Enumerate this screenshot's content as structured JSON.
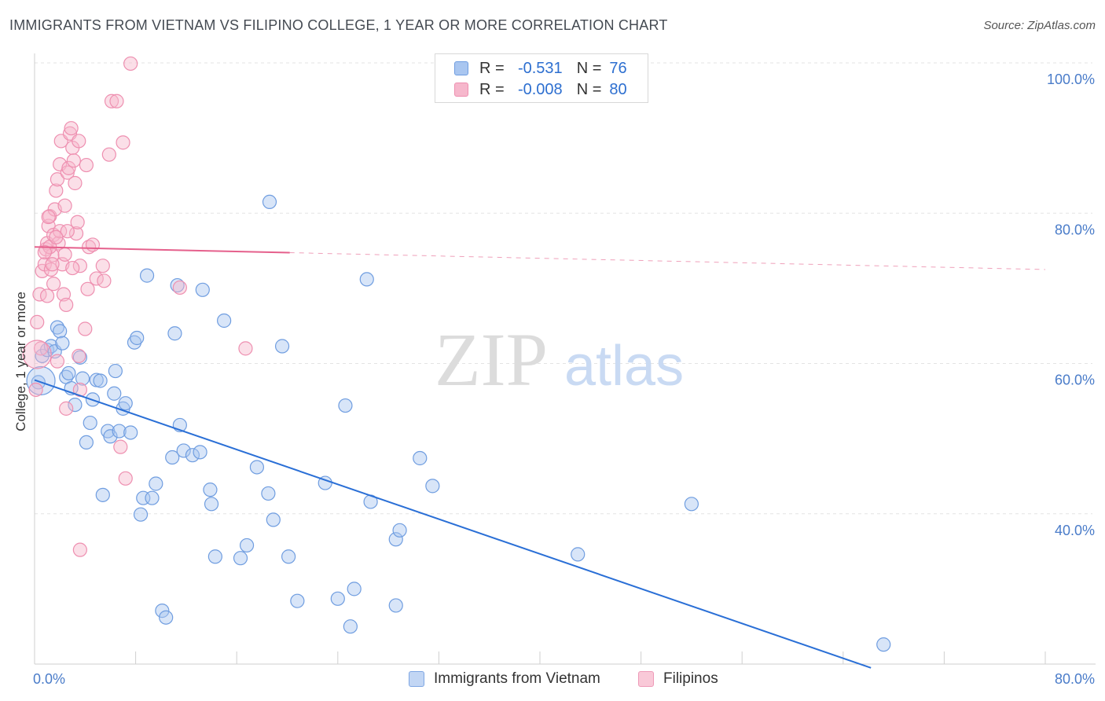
{
  "title": "IMMIGRANTS FROM VIETNAM VS FILIPINO COLLEGE, 1 YEAR OR MORE CORRELATION CHART",
  "source": "Source: ZipAtlas.com",
  "watermark": {
    "zip": "ZIP",
    "atlas": "atlas"
  },
  "legend": {
    "rows": [
      {
        "r_label": "R =",
        "r_value": "-0.531",
        "n_label": "N =",
        "n_value": "76"
      },
      {
        "r_label": "R =",
        "r_value": "-0.008",
        "n_label": "N =",
        "n_value": "80"
      }
    ]
  },
  "bottom_legend": {
    "series_a": "Immigrants from Vietnam",
    "series_b": "Filipinos"
  },
  "colors": {
    "blue_fill": "#a9c6f0",
    "blue_stroke": "#6f9de0",
    "blue_line": "#2a6fd6",
    "pink_fill": "#f6b7cc",
    "pink_stroke": "#ee8fb0",
    "pink_line": "#e5608c",
    "grid": "#e3e3e3",
    "axis_text": "#4a7cc9"
  },
  "chart_data": {
    "type": "scatter",
    "title": "IMMIGRANTS FROM VIETNAM VS FILIPINO COLLEGE, 1 YEAR OR MORE CORRELATION CHART",
    "xlabel": "",
    "ylabel": "College, 1 year or more",
    "xlim": [
      0,
      80
    ],
    "ylim": [
      20,
      100
    ],
    "x_tick_labels": [
      {
        "value": 0,
        "label": "0.0%"
      },
      {
        "value": 80,
        "label": "80.0%"
      }
    ],
    "y_tick_labels": [
      {
        "value": 100,
        "label": "100.0%"
      },
      {
        "value": 80,
        "label": "80.0%"
      },
      {
        "value": 60,
        "label": "60.0%"
      },
      {
        "value": 40,
        "label": "40.0%"
      }
    ],
    "series": [
      {
        "name": "Immigrants from Vietnam",
        "color": "blue",
        "R": -0.531,
        "N": 76,
        "trend": {
          "x0": 0,
          "y0": 57.8,
          "x1": 66.2,
          "y1": 19.5,
          "solid_to": 66.2
        },
        "points": [
          [
            0.3,
            57.5
          ],
          [
            0.6,
            61.0
          ],
          [
            1.0,
            61.8
          ],
          [
            1.3,
            62.3
          ],
          [
            1.6,
            61.6
          ],
          [
            1.8,
            64.8
          ],
          [
            2.0,
            64.3
          ],
          [
            2.2,
            62.7
          ],
          [
            2.5,
            58.2
          ],
          [
            2.7,
            58.7
          ],
          [
            2.9,
            56.7
          ],
          [
            3.2,
            54.5
          ],
          [
            3.6,
            60.8
          ],
          [
            3.8,
            58.0
          ],
          [
            4.1,
            49.5
          ],
          [
            4.4,
            52.1
          ],
          [
            4.6,
            55.2
          ],
          [
            4.9,
            57.8
          ],
          [
            5.2,
            57.7
          ],
          [
            5.4,
            42.5
          ],
          [
            5.8,
            51.0
          ],
          [
            6.0,
            50.3
          ],
          [
            6.3,
            56.0
          ],
          [
            6.4,
            59.0
          ],
          [
            6.7,
            51.0
          ],
          [
            7.0,
            54.0
          ],
          [
            7.2,
            54.7
          ],
          [
            7.6,
            50.8
          ],
          [
            7.9,
            62.8
          ],
          [
            8.1,
            63.4
          ],
          [
            8.4,
            39.9
          ],
          [
            8.6,
            42.1
          ],
          [
            8.9,
            71.7
          ],
          [
            9.3,
            42.1
          ],
          [
            9.6,
            44.0
          ],
          [
            10.1,
            27.1
          ],
          [
            10.4,
            26.2
          ],
          [
            10.9,
            47.5
          ],
          [
            11.1,
            64.0
          ],
          [
            11.3,
            70.4
          ],
          [
            11.5,
            51.8
          ],
          [
            11.8,
            48.4
          ],
          [
            12.5,
            47.8
          ],
          [
            13.1,
            48.2
          ],
          [
            13.3,
            69.8
          ],
          [
            13.9,
            43.2
          ],
          [
            14.0,
            41.3
          ],
          [
            14.3,
            34.3
          ],
          [
            15.0,
            65.7
          ],
          [
            16.3,
            34.1
          ],
          [
            16.8,
            35.8
          ],
          [
            17.6,
            46.2
          ],
          [
            18.5,
            42.7
          ],
          [
            18.6,
            81.5
          ],
          [
            18.9,
            39.2
          ],
          [
            19.6,
            62.3
          ],
          [
            20.1,
            34.3
          ],
          [
            20.8,
            28.4
          ],
          [
            23.0,
            44.1
          ],
          [
            24.0,
            28.7
          ],
          [
            24.6,
            54.4
          ],
          [
            25.0,
            25.0
          ],
          [
            25.3,
            30.0
          ],
          [
            26.3,
            71.2
          ],
          [
            26.6,
            41.6
          ],
          [
            28.6,
            36.6
          ],
          [
            28.9,
            37.8
          ],
          [
            28.6,
            27.8
          ],
          [
            30.5,
            47.4
          ],
          [
            31.5,
            43.7
          ],
          [
            43.0,
            34.6
          ],
          [
            52.0,
            41.3
          ],
          [
            67.2,
            22.6
          ]
        ],
        "big_points": [
          [
            0.5,
            57.7
          ]
        ]
      },
      {
        "name": "Filipinos",
        "color": "pink",
        "R": -0.008,
        "N": 80,
        "trend": {
          "x0": 0,
          "y0": 75.5,
          "x1": 80,
          "y1": 72.5,
          "solid_to": 20.2
        },
        "points": [
          [
            0.1,
            56.5
          ],
          [
            0.2,
            65.5
          ],
          [
            0.4,
            69.2
          ],
          [
            0.6,
            72.3
          ],
          [
            0.8,
            73.2
          ],
          [
            0.9,
            75.2
          ],
          [
            1.0,
            76.0
          ],
          [
            1.1,
            78.3
          ],
          [
            1.2,
            79.6
          ],
          [
            1.3,
            72.5
          ],
          [
            1.4,
            74.4
          ],
          [
            1.5,
            77.1
          ],
          [
            1.6,
            80.5
          ],
          [
            1.7,
            83.0
          ],
          [
            1.8,
            84.5
          ],
          [
            1.9,
            76.0
          ],
          [
            2.0,
            86.5
          ],
          [
            2.1,
            89.6
          ],
          [
            2.2,
            73.2
          ],
          [
            2.3,
            69.2
          ],
          [
            2.4,
            81.0
          ],
          [
            2.5,
            67.8
          ],
          [
            2.6,
            85.4
          ],
          [
            2.7,
            86.0
          ],
          [
            2.8,
            90.6
          ],
          [
            2.9,
            91.3
          ],
          [
            3.0,
            88.7
          ],
          [
            3.1,
            87.0
          ],
          [
            3.2,
            84.0
          ],
          [
            3.3,
            77.3
          ],
          [
            3.4,
            78.8
          ],
          [
            3.5,
            89.6
          ],
          [
            3.6,
            73.0
          ],
          [
            4.0,
            64.6
          ],
          [
            4.1,
            86.4
          ],
          [
            4.2,
            69.9
          ],
          [
            4.3,
            75.5
          ],
          [
            4.6,
            75.8
          ],
          [
            4.9,
            71.3
          ],
          [
            5.4,
            73.0
          ],
          [
            5.5,
            71.0
          ],
          [
            5.9,
            87.8
          ],
          [
            6.1,
            94.9
          ],
          [
            6.5,
            94.9
          ],
          [
            6.8,
            48.9
          ],
          [
            7.0,
            89.4
          ],
          [
            7.2,
            44.7
          ],
          [
            7.6,
            99.9
          ],
          [
            1.0,
            69.0
          ],
          [
            1.2,
            75.5
          ],
          [
            2.0,
            77.6
          ],
          [
            1.5,
            70.6
          ],
          [
            3.6,
            56.5
          ],
          [
            2.5,
            54.0
          ],
          [
            3.5,
            61.0
          ],
          [
            1.8,
            60.3
          ],
          [
            3.6,
            35.2
          ],
          [
            11.5,
            70.1
          ],
          [
            16.7,
            62.0
          ],
          [
            0.5,
            62.0
          ],
          [
            1.1,
            79.5
          ],
          [
            2.6,
            77.6
          ],
          [
            1.4,
            73.2
          ],
          [
            2.4,
            74.5
          ],
          [
            0.8,
            74.8
          ],
          [
            3.0,
            72.7
          ],
          [
            1.7,
            76.8
          ]
        ],
        "big_points": [
          [
            0.2,
            61.2
          ]
        ]
      }
    ]
  }
}
